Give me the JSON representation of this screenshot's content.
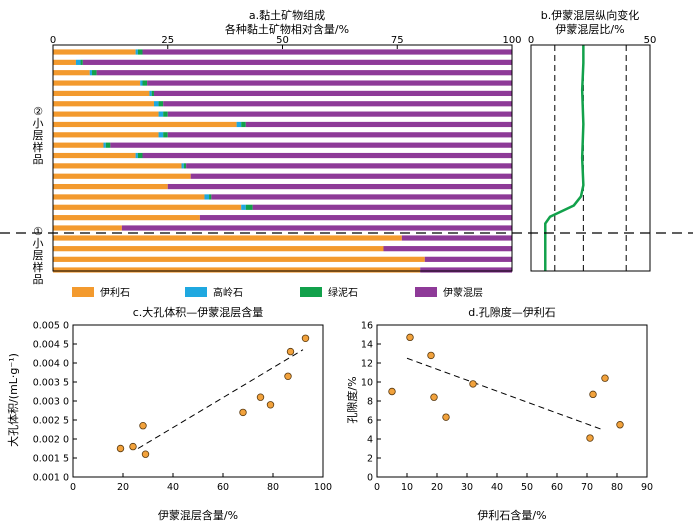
{
  "colors": {
    "illite": "#F39A2E",
    "kaolinite": "#1FA8E0",
    "chlorite": "#12A14B",
    "illite_smectite": "#8E3A98",
    "marker": "#F2A23C"
  },
  "legend": [
    {
      "label": "伊利石",
      "color": "#F39A2E"
    },
    {
      "label": "高岭石",
      "color": "#1FA8E0"
    },
    {
      "label": "绿泥石",
      "color": "#12A14B"
    },
    {
      "label": "伊蒙混层",
      "color": "#8E3A98"
    }
  ],
  "chart_data": [
    {
      "id": "a",
      "type": "bar",
      "orientation": "horizontal-stacked-100",
      "title": "a.黏土矿物组成",
      "subtitle": "各种黏土矿物相对含量/%",
      "xlim": [
        0,
        100
      ],
      "xticks": [
        "0",
        "25",
        "50",
        "75",
        "100"
      ],
      "group_labels": [
        {
          "label": "② 小 层 样 品",
          "lines": [
            "②",
            "小",
            "层",
            "样",
            "品"
          ]
        },
        {
          "label": "① 小 层 样 品",
          "lines": [
            "①",
            "小",
            "层",
            "样",
            "品"
          ]
        }
      ],
      "series_names": [
        "伊利石",
        "高岭石",
        "绿泥石",
        "伊蒙混层"
      ],
      "layer_2_samples": [
        [
          18,
          0.5,
          1,
          80.5
        ],
        [
          5,
          1,
          0.5,
          93.5
        ],
        [
          8,
          0.5,
          1,
          90.5
        ],
        [
          19,
          0.5,
          1,
          79.5
        ],
        [
          21,
          0.5,
          0.5,
          78
        ],
        [
          22,
          1,
          1,
          76
        ],
        [
          23,
          1,
          1,
          75
        ],
        [
          40,
          1,
          1,
          58
        ],
        [
          23,
          1,
          1,
          75
        ],
        [
          11,
          0.5,
          1,
          87.5
        ],
        [
          18,
          0.5,
          1,
          80.5
        ],
        [
          28,
          0.5,
          0.5,
          71
        ],
        [
          30,
          0,
          0,
          70
        ],
        [
          25,
          0,
          0,
          75
        ],
        [
          33,
          1,
          0.5,
          65.5
        ],
        [
          41,
          1,
          1.5,
          56.5
        ],
        [
          32,
          0,
          0,
          68
        ],
        [
          15,
          0,
          0,
          85
        ]
      ],
      "layer_1_samples": [
        [
          76,
          0,
          0,
          24
        ],
        [
          72,
          0,
          0,
          28
        ],
        [
          81,
          0,
          0,
          19
        ],
        [
          80,
          0,
          0,
          20
        ]
      ]
    },
    {
      "id": "b",
      "type": "line",
      "title": "b.伊蒙混层纵向变化",
      "subtitle": "伊蒙混层比/%",
      "xlim": [
        0,
        50
      ],
      "xticks": [
        "0",
        "50"
      ],
      "reference_lines_x": [
        10,
        22,
        40
      ],
      "series": [
        {
          "color": "#12A14B",
          "points": [
            {
              "x": 22,
              "depth": 0
            },
            {
              "x": 22,
              "depth": 0.08
            },
            {
              "x": 21.5,
              "depth": 0.2
            },
            {
              "x": 22,
              "depth": 0.35
            },
            {
              "x": 21.5,
              "depth": 0.5
            },
            {
              "x": 22,
              "depth": 0.62
            },
            {
              "x": 21,
              "depth": 0.67
            },
            {
              "x": 18,
              "depth": 0.71
            },
            {
              "x": 12,
              "depth": 0.74
            },
            {
              "x": 8,
              "depth": 0.76
            },
            {
              "x": 6,
              "depth": 0.79
            },
            {
              "x": 6,
              "depth": 1
            }
          ]
        }
      ]
    },
    {
      "id": "c",
      "type": "scatter",
      "title": "c.大孔体积—伊蒙混层含量",
      "xlabel": "伊蒙混层含量/%",
      "ylabel": "大孔体积/(mL·g⁻¹)",
      "xlim": [
        0,
        100
      ],
      "ylim": [
        0.001,
        0.005
      ],
      "xticks": [
        "0",
        "20",
        "40",
        "60",
        "80",
        "100"
      ],
      "yticks": [
        "0.001 0",
        "0.001 5",
        "0.002 0",
        "0.002 5",
        "0.003 0",
        "0.003 5",
        "0.004 0",
        "0.004 5",
        "0.005 0"
      ],
      "points": [
        {
          "x": 19,
          "y": 0.00175
        },
        {
          "x": 24,
          "y": 0.0018
        },
        {
          "x": 28,
          "y": 0.00235
        },
        {
          "x": 29,
          "y": 0.0016
        },
        {
          "x": 68,
          "y": 0.0027
        },
        {
          "x": 75,
          "y": 0.0031
        },
        {
          "x": 79,
          "y": 0.0029
        },
        {
          "x": 86,
          "y": 0.00365
        },
        {
          "x": 87,
          "y": 0.0043
        },
        {
          "x": 93,
          "y": 0.00465
        }
      ],
      "trendline": [
        {
          "x": 26,
          "y": 0.00175
        },
        {
          "x": 92,
          "y": 0.00435
        }
      ]
    },
    {
      "id": "d",
      "type": "scatter",
      "title": "d.孔隙度—伊利石",
      "xlabel": "伊利石含量/%",
      "ylabel": "孔隙度/%",
      "xlim": [
        0,
        90
      ],
      "ylim": [
        0,
        16
      ],
      "xticks": [
        "0",
        "10",
        "20",
        "30",
        "40",
        "50",
        "60",
        "70",
        "80",
        "90"
      ],
      "yticks": [
        "0",
        "2",
        "4",
        "6",
        "8",
        "10",
        "12",
        "14",
        "16"
      ],
      "points": [
        {
          "x": 5,
          "y": 9
        },
        {
          "x": 11,
          "y": 14.7
        },
        {
          "x": 18,
          "y": 12.8
        },
        {
          "x": 19,
          "y": 8.4
        },
        {
          "x": 23,
          "y": 6.3
        },
        {
          "x": 32,
          "y": 9.8
        },
        {
          "x": 71,
          "y": 4.1
        },
        {
          "x": 72,
          "y": 8.7
        },
        {
          "x": 76,
          "y": 10.4
        },
        {
          "x": 81,
          "y": 5.5
        }
      ],
      "trendline": [
        {
          "x": 10,
          "y": 12.5
        },
        {
          "x": 75,
          "y": 5
        }
      ]
    }
  ]
}
